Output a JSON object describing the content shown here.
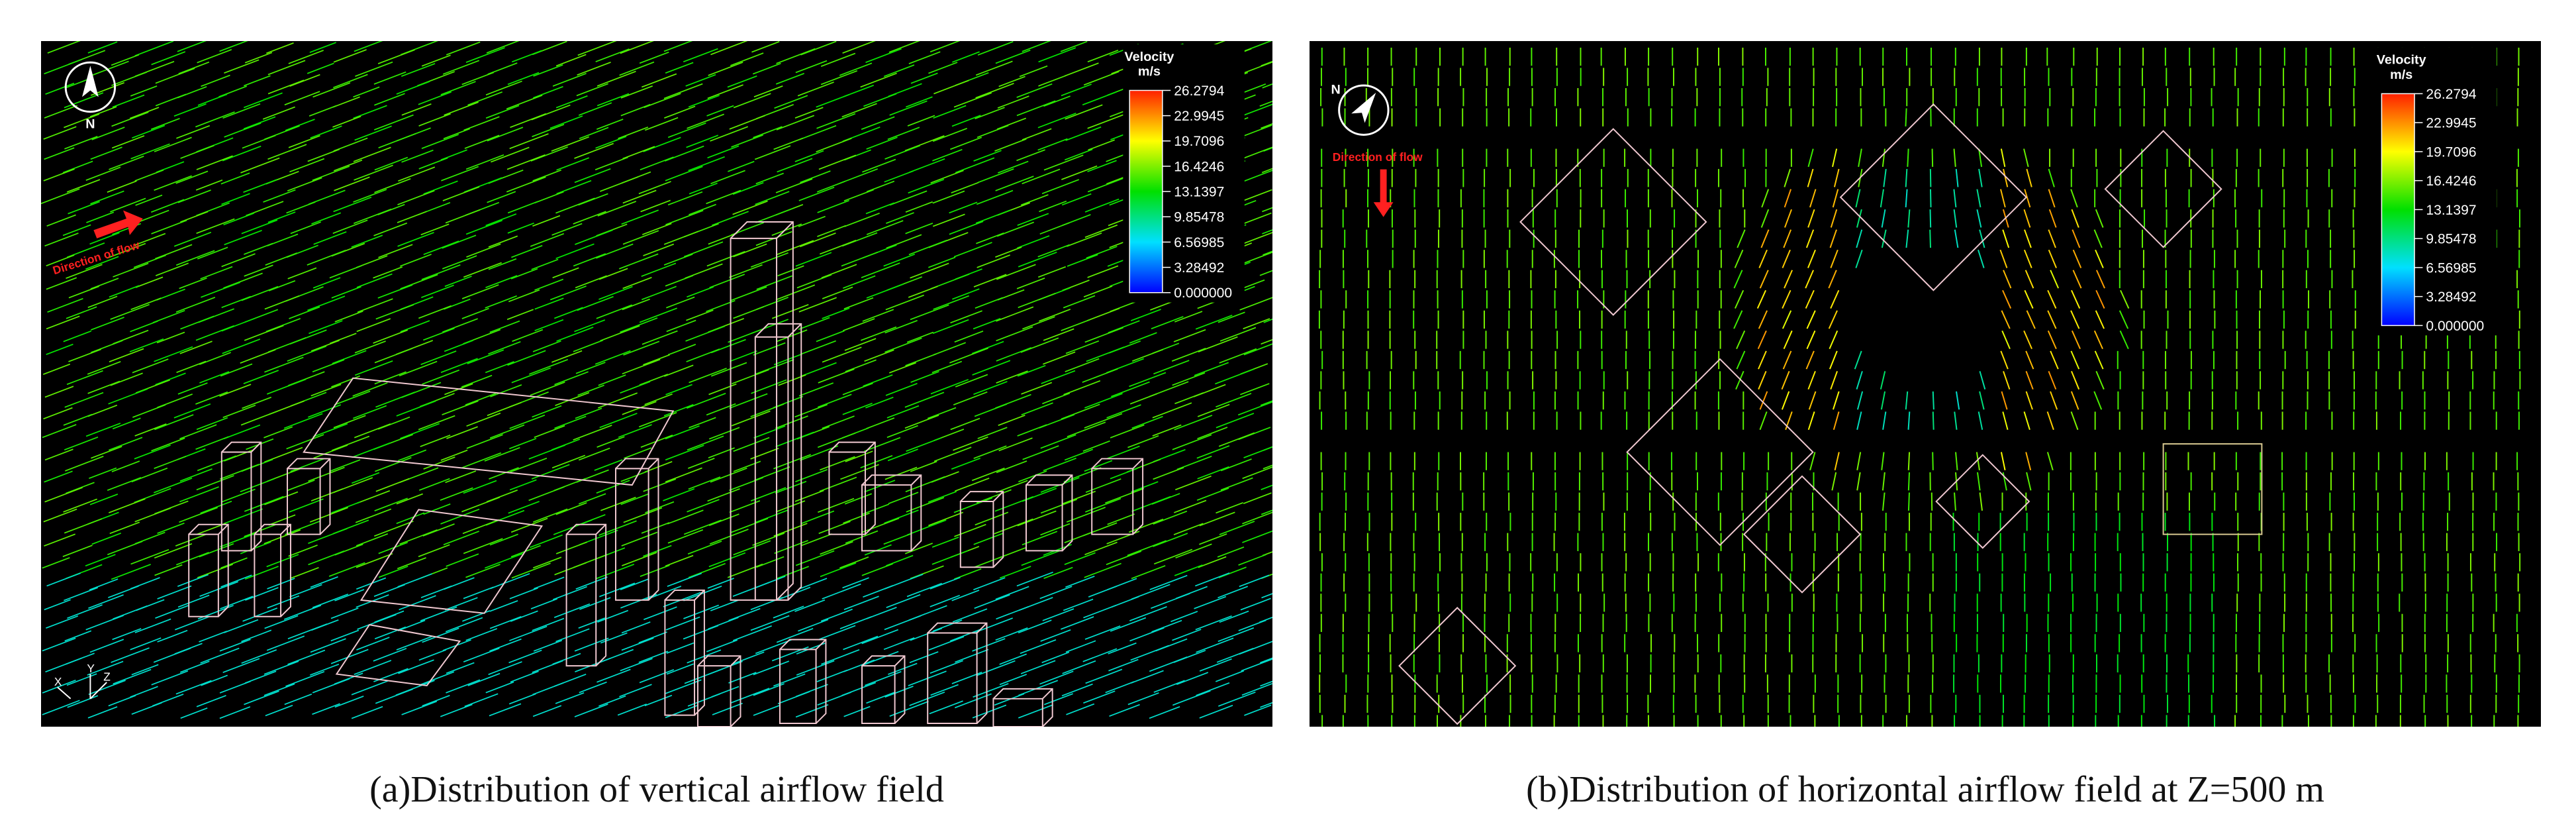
{
  "figure": {
    "panels": [
      {
        "caption": "(a)Distribution of vertical airflow field",
        "legend": {
          "title": "Velocity",
          "unit": "m/s",
          "ticks": [
            "26.2794",
            "22.9945",
            "19.7096",
            "16.4246",
            "13.1397",
            "9.85478",
            "6.56985",
            "3.28492",
            "0.000000"
          ]
        },
        "compass": "N",
        "flow_label": "Direction of flow",
        "axes": [
          "X",
          "Y",
          "Z"
        ]
      },
      {
        "caption": "(b)Distribution of horizontal airflow field at Z=500 m",
        "legend": {
          "title": "Velocity",
          "unit": "m/s",
          "ticks": [
            "26.2794",
            "22.9945",
            "19.7096",
            "16.4246",
            "13.1397",
            "9.85478",
            "6.56985",
            "3.28492",
            "0.000000"
          ]
        },
        "compass": "N",
        "flow_label": "Direction of flow"
      }
    ]
  }
}
